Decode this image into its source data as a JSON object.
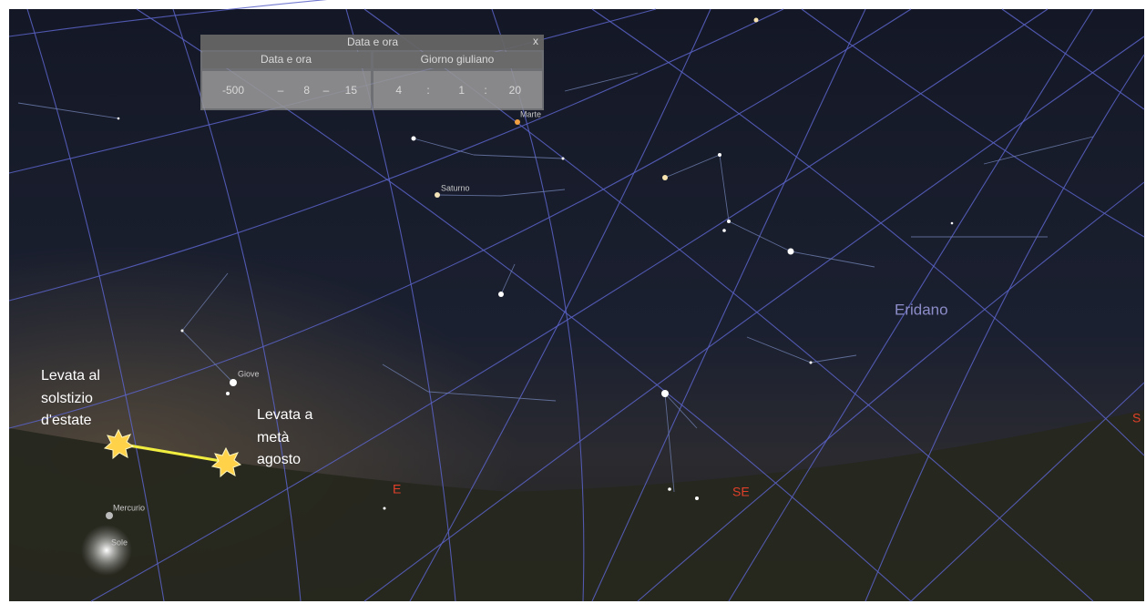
{
  "dialog": {
    "title": "Data e ora",
    "close": "x",
    "tabs": [
      "Data e ora",
      "Giorno giuliano"
    ],
    "date_fields": [
      "-500",
      "8",
      "15"
    ],
    "date_separators": [
      "–",
      "–"
    ],
    "time_fields": [
      "4",
      "1",
      "20"
    ],
    "time_separators": [
      ":",
      ":"
    ]
  },
  "sky_labels": {
    "constellation": "Eridano",
    "planets": [
      "Marte",
      "Saturno",
      "Giove",
      "Mercurio",
      "Sole"
    ],
    "cardinals": [
      "E",
      "SE",
      "S"
    ]
  },
  "annotations": [
    {
      "lines": [
        "Levata al",
        "solstizio",
        "d'estate"
      ]
    },
    {
      "lines": [
        "Levata a",
        "metà",
        "agosto"
      ]
    }
  ]
}
